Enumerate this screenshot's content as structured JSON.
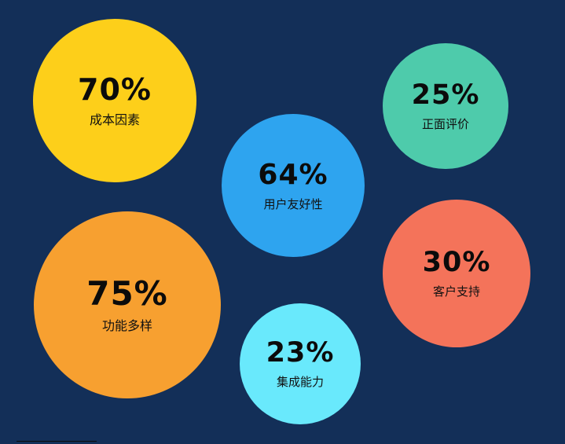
{
  "chart_data": {
    "type": "bubble",
    "title": "",
    "items": [
      {
        "key": "cost",
        "value": 70,
        "label_value": "70%",
        "label": "成本因素",
        "color": "#fdcf1a"
      },
      {
        "key": "positive",
        "value": 25,
        "label_value": "25%",
        "label": "正面评价",
        "color": "#4ecbab"
      },
      {
        "key": "usability",
        "value": 64,
        "label_value": "64%",
        "label": "用户友好性",
        "color": "#2ea4ef"
      },
      {
        "key": "support",
        "value": 30,
        "label_value": "30%",
        "label": "客户支持",
        "color": "#f4735a"
      },
      {
        "key": "features",
        "value": 75,
        "label_value": "75%",
        "label": "功能多样",
        "color": "#f7a030"
      },
      {
        "key": "integration",
        "value": 23,
        "label_value": "23%",
        "label": "集成能力",
        "color": "#69e9fc"
      }
    ]
  }
}
